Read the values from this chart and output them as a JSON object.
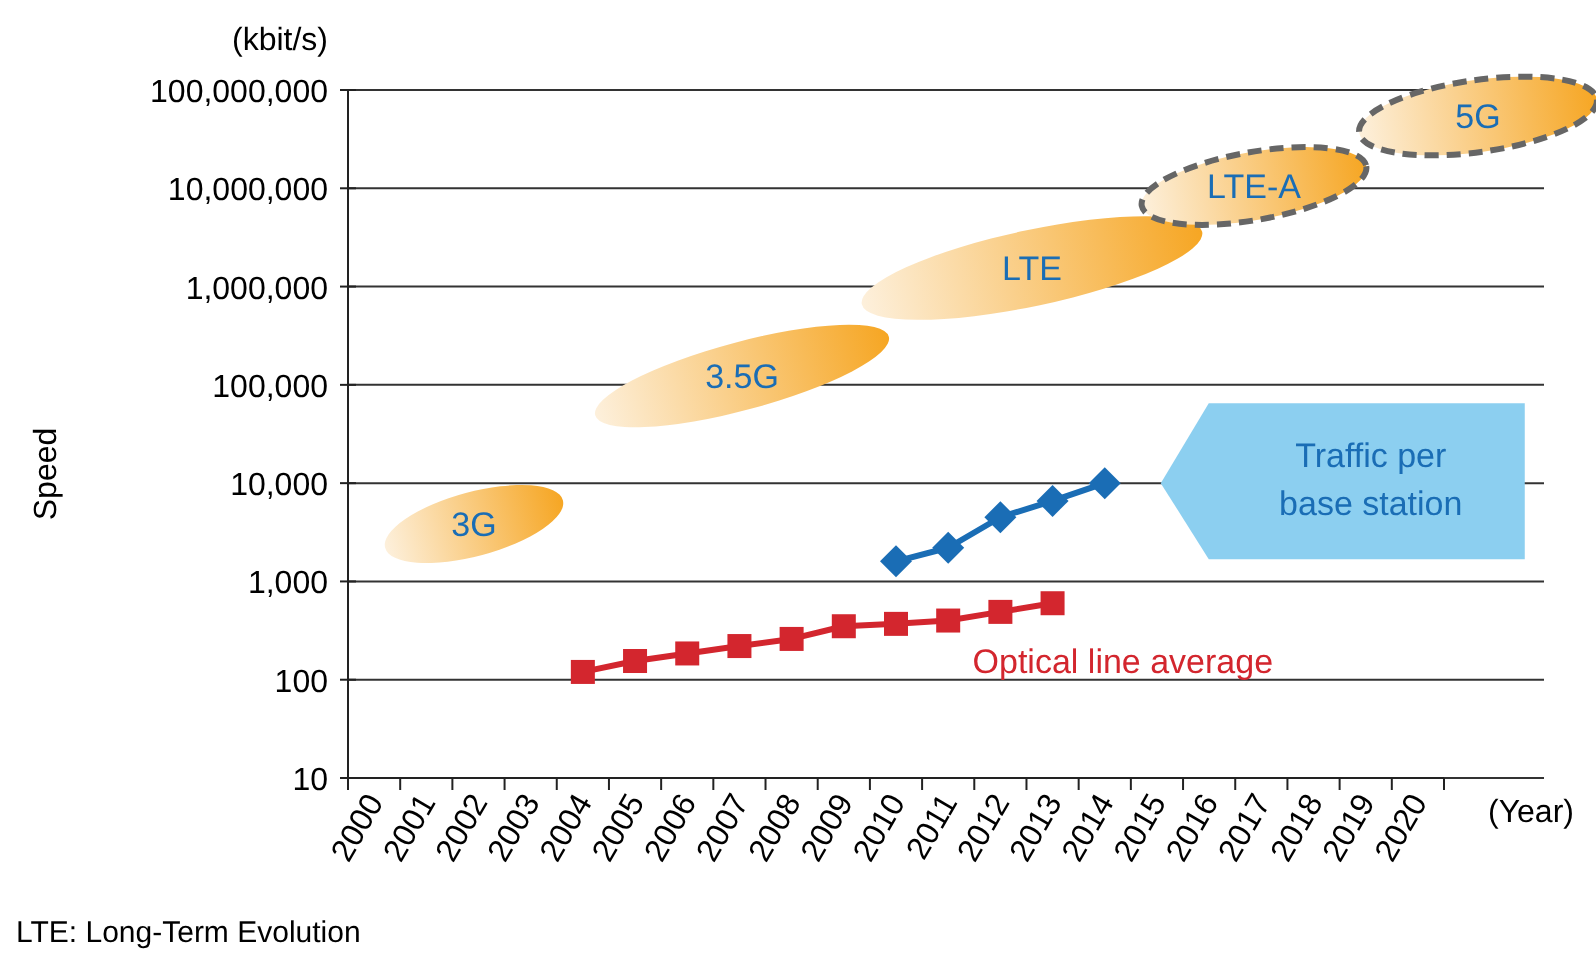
{
  "chart_data": {
    "type": "line",
    "ylabel": "Speed",
    "xlabel": "(Year)",
    "log": "y",
    "grid": "y",
    "categories": [
      "2000",
      "2001",
      "2002",
      "2003",
      "2004",
      "2005",
      "2006",
      "2007",
      "2008",
      "2009",
      "2010",
      "2011",
      "2012",
      "2013",
      "2014",
      "2015",
      "2016",
      "2017",
      "2018",
      "2019",
      "2020"
    ],
    "ylim": [
      10,
      100000000
    ],
    "yticks": [
      {
        "value": 10,
        "label": "10"
      },
      {
        "value": 100,
        "label": "100"
      },
      {
        "value": 1000,
        "label": "1,000"
      },
      {
        "value": 10000,
        "label": "10,000"
      },
      {
        "value": 100000,
        "label": "100,000"
      },
      {
        "value": 1000000,
        "label": "1,000,000"
      },
      {
        "value": 10000000,
        "label": "10,000,000"
      },
      {
        "value": 100000000,
        "label": "100,000,000"
      }
    ],
    "series": [
      {
        "name": "Optical line average",
        "color": "#d3262e",
        "marker": "square",
        "values": [
          null,
          null,
          null,
          null,
          120,
          155,
          185,
          220,
          260,
          350,
          370,
          400,
          490,
          600,
          null,
          null,
          null,
          null,
          null,
          null,
          null
        ]
      },
      {
        "name": "Traffic per base station",
        "color": "#1a6db5",
        "marker": "diamond",
        "values": [
          null,
          null,
          null,
          null,
          null,
          null,
          null,
          null,
          null,
          null,
          1600,
          2200,
          4500,
          6600,
          10000,
          null,
          null,
          null,
          null,
          null,
          null
        ]
      }
    ],
    "annotations": [
      "(kbit/s)",
      "3G",
      "3.5G",
      "LTE",
      "LTE-A",
      "5G",
      "LTE: Long-Term Evolution"
    ]
  }
}
